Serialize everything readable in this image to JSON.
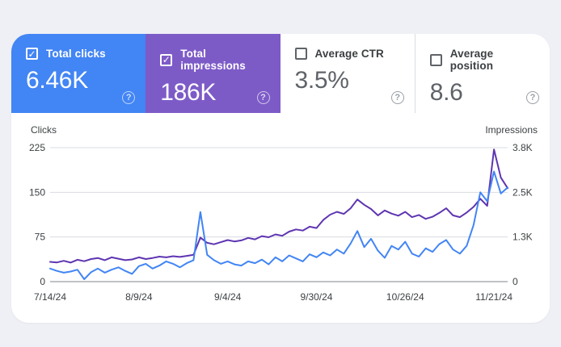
{
  "page": {
    "background": "#eef0f6",
    "panel_background": "#ffffff"
  },
  "icons": {
    "check": "✓",
    "help": "?"
  },
  "cards": [
    {
      "label": "Total clicks",
      "value": "6.46K",
      "checked": true,
      "bg": "#4285f4",
      "text": "#ffffff"
    },
    {
      "label": "Total impressions",
      "value": "186K",
      "checked": true,
      "bg": "#7d5bc7",
      "text": "#ffffff"
    },
    {
      "label": "Average CTR",
      "value": "3.5%",
      "checked": false,
      "bg": "#ffffff",
      "text": "#5f6368"
    },
    {
      "label": "Average position",
      "value": "8.6",
      "checked": false,
      "bg": "#ffffff",
      "text": "#5f6368"
    }
  ],
  "chart_data": {
    "type": "line",
    "title": "",
    "left_axis": {
      "title": "Clicks",
      "ticks": [
        "225",
        "150",
        "75",
        "0"
      ],
      "tick_values": [
        225,
        150,
        75,
        0
      ],
      "max": 225
    },
    "right_axis": {
      "title": "Impressions",
      "ticks": [
        "3.8K",
        "2.5K",
        "1.3K",
        "0"
      ],
      "tick_values": [
        3800,
        2533,
        1267,
        0
      ],
      "max": 3800
    },
    "x_tick_labels": [
      "7/14/24",
      "8/9/24",
      "9/4/24",
      "9/30/24",
      "10/26/24",
      "11/21/24"
    ],
    "x_tick_indices": [
      0,
      13,
      26,
      39,
      52,
      65
    ],
    "grid": "horizontal",
    "gridline_color": "#dadce0",
    "baseline_color": "#80868b",
    "series": [
      {
        "name": "Clicks",
        "axis": "left",
        "color": "#4285f4",
        "values": [
          22,
          18,
          15,
          17,
          20,
          4,
          16,
          22,
          15,
          20,
          24,
          18,
          13,
          26,
          30,
          22,
          27,
          34,
          30,
          24,
          31,
          36,
          117,
          45,
          36,
          30,
          34,
          29,
          27,
          34,
          31,
          37,
          29,
          41,
          34,
          44,
          39,
          34,
          46,
          41,
          49,
          44,
          54,
          47,
          64,
          85,
          58,
          72,
          52,
          40,
          60,
          54,
          67,
          47,
          42,
          56,
          50,
          63,
          70,
          54,
          47,
          60,
          95,
          150,
          135,
          185,
          148,
          158
        ]
      },
      {
        "name": "Impressions",
        "axis": "right",
        "color": "#5e35b1",
        "values": [
          560,
          545,
          590,
          540,
          620,
          580,
          640,
          670,
          610,
          690,
          650,
          610,
          630,
          690,
          640,
          670,
          710,
          690,
          720,
          700,
          730,
          760,
          1250,
          1100,
          1060,
          1120,
          1180,
          1140,
          1170,
          1240,
          1200,
          1290,
          1260,
          1340,
          1300,
          1420,
          1480,
          1450,
          1560,
          1520,
          1750,
          1900,
          1980,
          1920,
          2080,
          2330,
          2180,
          2060,
          1880,
          2020,
          1930,
          1870,
          1980,
          1830,
          1890,
          1780,
          1840,
          1950,
          2080,
          1880,
          1830,
          1960,
          2120,
          2350,
          2150,
          3750,
          2950,
          2650
        ]
      }
    ]
  }
}
